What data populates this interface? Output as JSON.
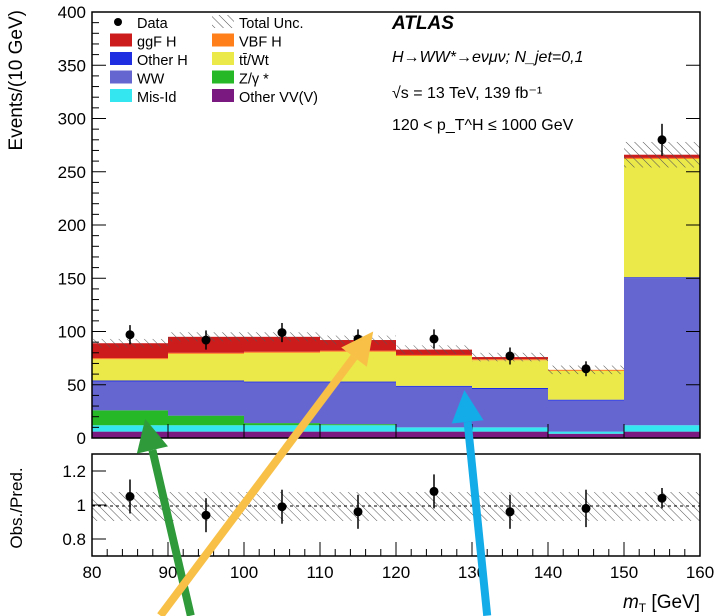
{
  "chart_data": {
    "type": "bar",
    "subtype": "stacked-histogram-with-ratio-panel",
    "bin_edges": [
      80,
      90,
      100,
      110,
      120,
      130,
      140,
      150,
      160
    ],
    "xlim": [
      80,
      160
    ],
    "ylim": [
      0,
      400
    ],
    "ratio_ylim": [
      0.7,
      1.3
    ],
    "xlabel": "m_T [GeV]",
    "ylabel": "Events/(10 GeV)",
    "ratio_ylabel": "Obs./Pred.",
    "x_ticks": [
      80,
      90,
      100,
      110,
      120,
      130,
      140,
      150,
      160
    ],
    "y_ticks": [
      0,
      50,
      100,
      150,
      200,
      250,
      300,
      350,
      400
    ],
    "ratio_ticks": [
      0.8,
      1,
      1.2
    ],
    "series": [
      {
        "name": "Other VV(V)",
        "color": "#7a1a80",
        "values": [
          6,
          6,
          6,
          6,
          6,
          6,
          4,
          6
        ]
      },
      {
        "name": "Mis-Id",
        "color": "#33e6f0",
        "values": [
          6,
          6,
          6,
          6,
          4,
          4,
          2,
          6
        ]
      },
      {
        "name": "Z/γ*",
        "color": "#26b826",
        "values": [
          14,
          9,
          2,
          1,
          0,
          0,
          0,
          0
        ]
      },
      {
        "name": "WW",
        "color": "#6666d1",
        "values": [
          27,
          32,
          38,
          39,
          38,
          36,
          29,
          138
        ]
      },
      {
        "name": "Other H",
        "color": "#1f2ee0",
        "values": [
          1,
          1,
          1,
          1,
          1,
          1,
          1,
          1
        ]
      },
      {
        "name": "tt̄/Wt",
        "color": "#ebe84a",
        "values": [
          20,
          25,
          27,
          28,
          28,
          26,
          27,
          111
        ]
      },
      {
        "name": "VBF H",
        "color": "#ff7f1a",
        "values": [
          1,
          1,
          1,
          1,
          1,
          1,
          1,
          1
        ]
      },
      {
        "name": "ggF H",
        "color": "#cc1c1c",
        "values": [
          14,
          15,
          14,
          10,
          5,
          2,
          0,
          3
        ]
      }
    ],
    "data_points": [
      97,
      92,
      99,
      93,
      93,
      77,
      65,
      280
    ],
    "data_errors": [
      9,
      9,
      9,
      9,
      9,
      8,
      7,
      15
    ],
    "ratio_points": [
      1.05,
      0.94,
      0.99,
      0.96,
      1.08,
      0.96,
      0.98,
      1.04
    ],
    "ratio_errors": [
      0.1,
      0.1,
      0.1,
      0.1,
      0.1,
      0.1,
      0.11,
      0.06
    ],
    "legend_position": "top-left",
    "legend": [
      {
        "label": "Data",
        "kind": "marker"
      },
      {
        "label": "Total Unc.",
        "kind": "hatch"
      },
      {
        "label": "ggF H",
        "kind": "fill",
        "color": "#cc1c1c"
      },
      {
        "label": "VBF H",
        "kind": "fill",
        "color": "#ff7f1a"
      },
      {
        "label": "Other H",
        "kind": "fill",
        "color": "#1f2ee0"
      },
      {
        "label": "tt̄/Wt",
        "kind": "fill",
        "color": "#ebe84a"
      },
      {
        "label": "WW",
        "kind": "fill",
        "color": "#6666d1"
      },
      {
        "label": "Z/γ *",
        "kind": "fill",
        "color": "#26b826"
      },
      {
        "label": "Mis-Id",
        "kind": "fill",
        "color": "#33e6f0"
      },
      {
        "label": "Other VV(V)",
        "kind": "fill",
        "color": "#7a1a80"
      }
    ],
    "annotations": {
      "experiment": "ATLAS",
      "process": "H→WW*→eνμν; N_jet=0,1",
      "energy": "√s = 13 TeV, 139 fb⁻¹",
      "cut": "120 < p_T^H ≤ 1000 GeV"
    },
    "arrows": [
      {
        "color": "#2e9a3a",
        "from": [
          93,
          0.35
        ],
        "to": [
          87,
          18
        ]
      },
      {
        "color": "#f8c047",
        "from": [
          89,
          0.35
        ],
        "to": [
          117,
          100
        ]
      },
      {
        "color": "#13abe8",
        "from": [
          132,
          0.35
        ],
        "to": [
          129,
          45
        ]
      }
    ]
  }
}
